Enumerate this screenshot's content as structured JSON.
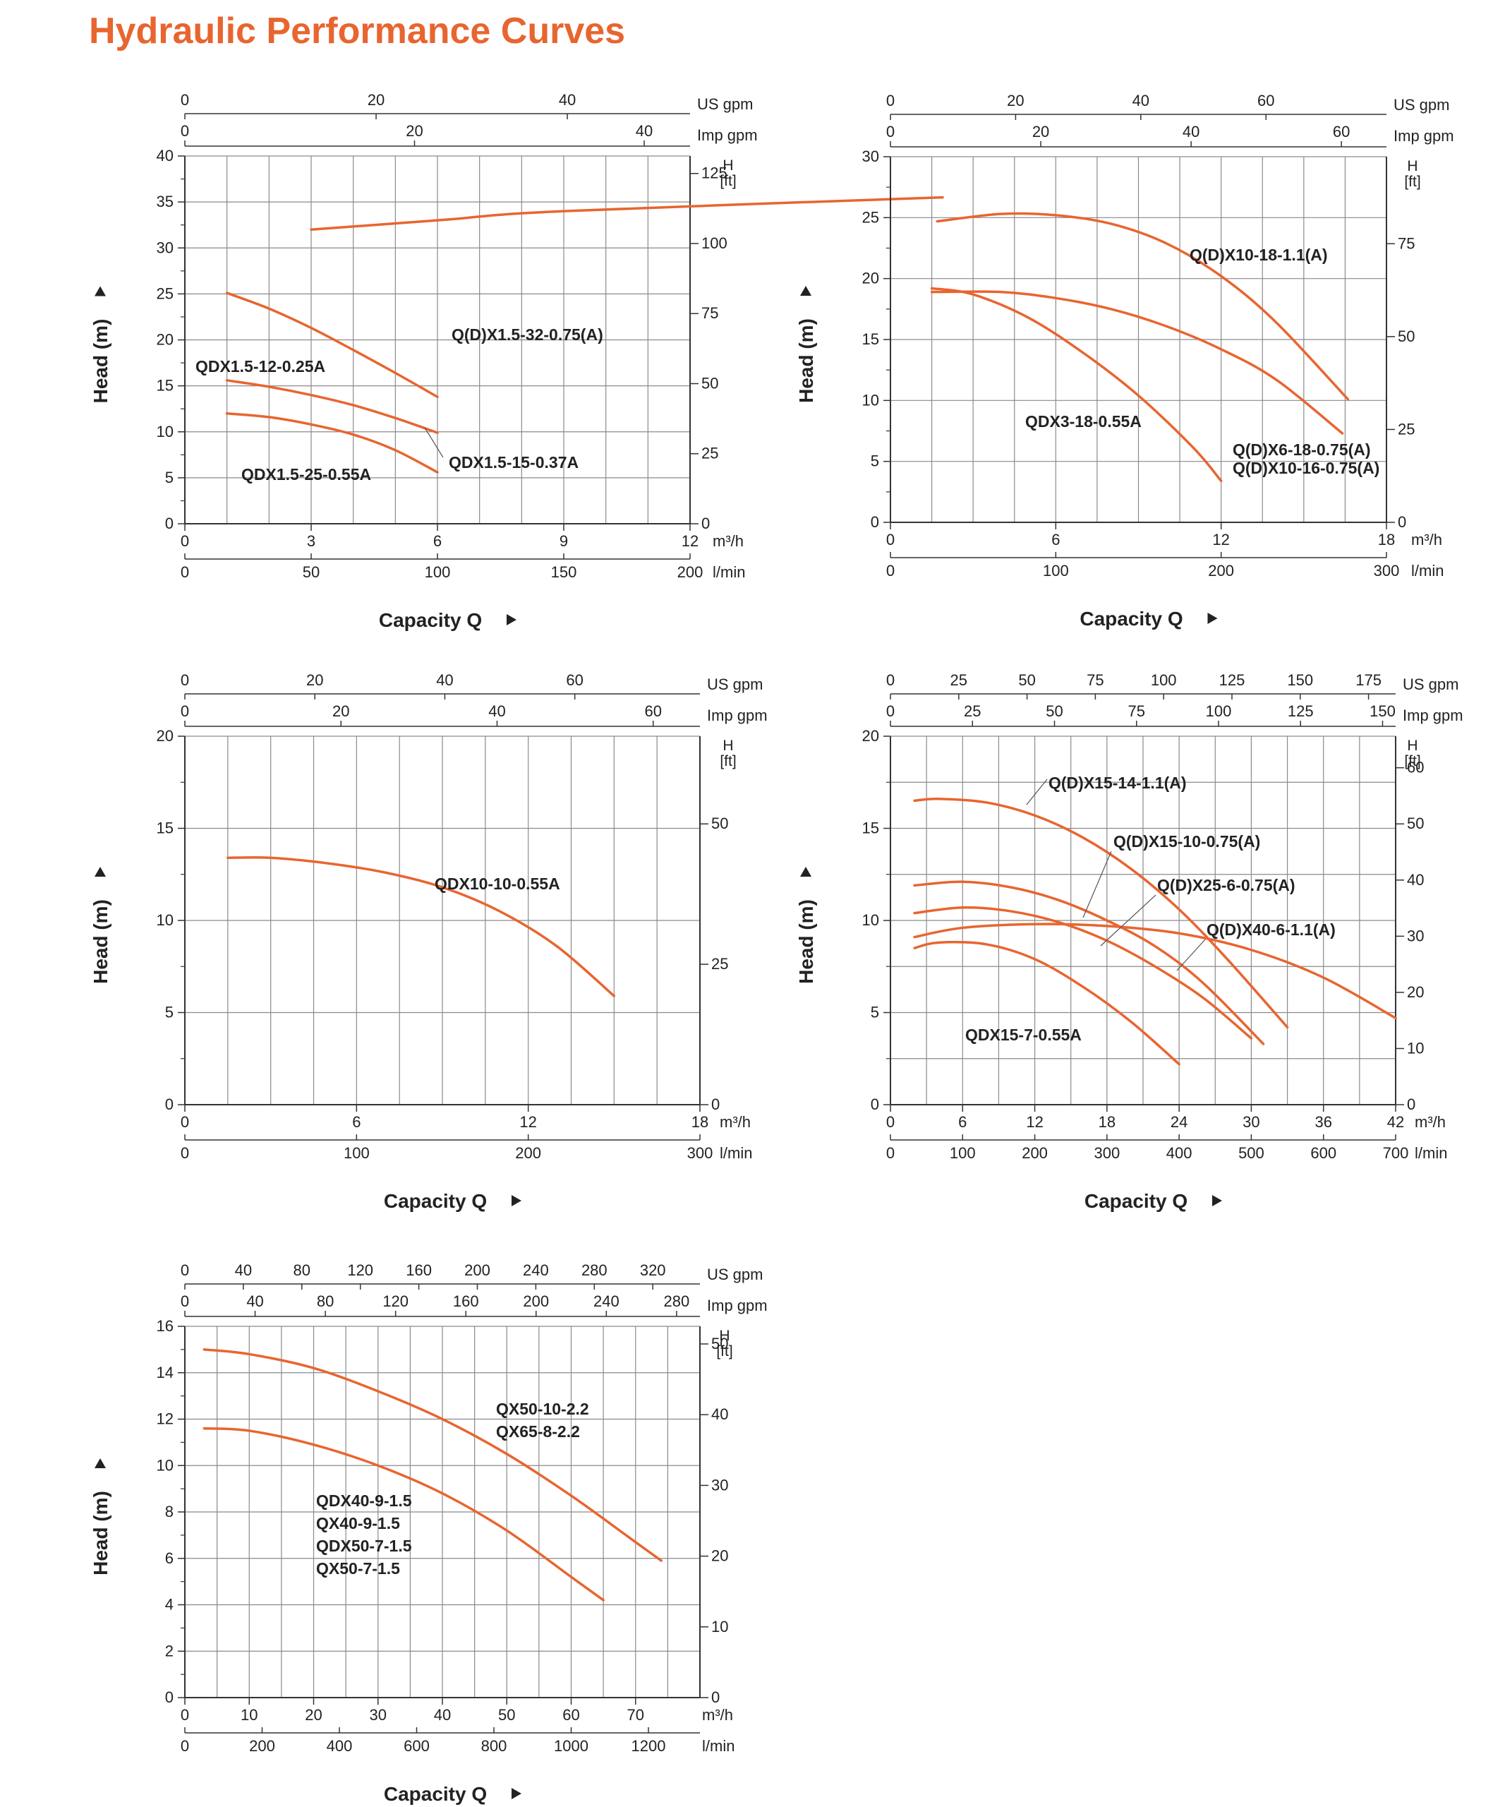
{
  "page": {
    "title": "Hydraulic Performance Curves",
    "title_color": "#E8652F",
    "curve_color": "#E8652F"
  },
  "chart_data": [
    {
      "type": "line",
      "xlim": [
        0,
        12
      ],
      "ylim": [
        0,
        40
      ],
      "x_ticks": [
        "0",
        "3",
        "6",
        "9",
        "12"
      ],
      "x_unit": "m³/h",
      "lmin_ticks": [
        {
          "v": 0,
          "t": "0"
        },
        {
          "v": 50,
          "t": "50"
        },
        {
          "v": 100,
          "t": "100"
        },
        {
          "v": 150,
          "t": "150"
        },
        {
          "v": 200,
          "t": "200"
        }
      ],
      "lmin_unit": "l/min",
      "usgpm_ticks": [
        {
          "v": 0,
          "t": "0"
        },
        {
          "v": 20,
          "t": "20"
        },
        {
          "v": 40,
          "t": "40"
        }
      ],
      "usgpm_unit": "US gpm",
      "impgpm_ticks": [
        {
          "v": 0,
          "t": "0"
        },
        {
          "v": 20,
          "t": "20"
        },
        {
          "v": 40,
          "t": "40"
        }
      ],
      "impgpm_unit": "Imp gpm",
      "y_ticks": [
        "0",
        "5",
        "10",
        "15",
        "20",
        "25",
        "30",
        "35",
        "40"
      ],
      "ft_ticks": [
        {
          "v": 0,
          "t": "0"
        },
        {
          "v": 25,
          "t": "25"
        },
        {
          "v": 50,
          "t": "50"
        },
        {
          "v": 75,
          "t": "75"
        },
        {
          "v": 100,
          "t": "100"
        },
        {
          "v": 125,
          "t": "125"
        }
      ],
      "ft_unit": "H [ft]",
      "xlabel": "Capacity Q",
      "ylabel": "Head (m)",
      "series": [
        {
          "name": "Q(D)X1.5-32-0.75(A)",
          "x": [
            3,
            6,
            9,
            18
          ],
          "y": [
            32,
            33,
            34,
            35.5
          ]
        },
        {
          "name": "QDX1.5-12-0.25A",
          "x": [
            1,
            2,
            3,
            4,
            5,
            6
          ],
          "y": [
            25.1,
            23.4,
            21.3,
            18.9,
            16.4,
            13.8
          ]
        },
        {
          "name": "QDX1.5-15-0.37A",
          "x": [
            1,
            2,
            3,
            4,
            5,
            6
          ],
          "y": [
            15.6,
            14.9,
            14.0,
            12.9,
            11.5,
            9.9
          ]
        },
        {
          "name": "QDX1.5-25-0.55A",
          "x": [
            1,
            2,
            3,
            4,
            5,
            6
          ],
          "y": [
            12.0,
            11.6,
            10.8,
            9.7,
            8.0,
            5.6
          ]
        }
      ]
    },
    {
      "type": "line",
      "xlim": [
        0,
        18
      ],
      "ylim": [
        0,
        30
      ],
      "x_ticks": [
        "0",
        "6",
        "12",
        "18"
      ],
      "x_unit": "m³/h",
      "lmin_ticks": [
        {
          "v": 0,
          "t": "0"
        },
        {
          "v": 100,
          "t": "100"
        },
        {
          "v": 200,
          "t": "200"
        },
        {
          "v": 300,
          "t": "300"
        }
      ],
      "lmin_unit": "l/min",
      "usgpm_ticks": [
        {
          "v": 0,
          "t": "0"
        },
        {
          "v": 20,
          "t": "20"
        },
        {
          "v": 40,
          "t": "40"
        },
        {
          "v": 60,
          "t": "60"
        }
      ],
      "usgpm_unit": "US gpm",
      "impgpm_ticks": [
        {
          "v": 0,
          "t": "0"
        },
        {
          "v": 20,
          "t": "20"
        },
        {
          "v": 40,
          "t": "40"
        },
        {
          "v": 60,
          "t": "60"
        }
      ],
      "impgpm_unit": "Imp gpm",
      "y_ticks": [
        "0",
        "5",
        "10",
        "15",
        "20",
        "25",
        "30"
      ],
      "ft_ticks": [
        {
          "v": 0,
          "t": "0"
        },
        {
          "v": 25,
          "t": "25"
        },
        {
          "v": 50,
          "t": "50"
        },
        {
          "v": 75,
          "t": "75"
        }
      ],
      "ft_unit": "H [ft]",
      "xlabel": "Capacity Q",
      "ylabel": "Head (m)",
      "series": [
        {
          "name": "Q(D)X10-18-1.1(A)",
          "x": [
            1.7,
            4,
            6,
            8,
            10,
            12,
            14,
            16.6
          ],
          "y": [
            24.7,
            25.3,
            25.2,
            24.5,
            22.9,
            20.2,
            16.4,
            10.1
          ]
        },
        {
          "name": "Q(D)X6-18-0.75(A) / Q(D)X10-16-0.75(A)",
          "x": [
            1.5,
            4,
            6,
            8,
            10,
            12,
            14,
            16.4
          ],
          "y": [
            18.9,
            18.9,
            18.4,
            17.5,
            16.1,
            14.2,
            11.7,
            7.3
          ]
        },
        {
          "name": "QDX3-18-0.55A",
          "x": [
            1.5,
            3,
            5,
            7,
            9,
            11,
            12
          ],
          "y": [
            19.2,
            18.7,
            16.8,
            13.9,
            10.4,
            6.1,
            3.4
          ]
        }
      ]
    },
    {
      "type": "line",
      "xlim": [
        0,
        18
      ],
      "ylim": [
        0,
        20
      ],
      "x_ticks": [
        "0",
        "6",
        "12",
        "18"
      ],
      "x_unit": "m³/h",
      "lmin_ticks": [
        {
          "v": 0,
          "t": "0"
        },
        {
          "v": 100,
          "t": "100"
        },
        {
          "v": 200,
          "t": "200"
        },
        {
          "v": 300,
          "t": "300"
        }
      ],
      "lmin_unit": "l/min",
      "usgpm_ticks": [
        {
          "v": 0,
          "t": "0"
        },
        {
          "v": 20,
          "t": "20"
        },
        {
          "v": 40,
          "t": "40"
        },
        {
          "v": 60,
          "t": "60"
        }
      ],
      "usgpm_unit": "US gpm",
      "impgpm_ticks": [
        {
          "v": 0,
          "t": "0"
        },
        {
          "v": 20,
          "t": "20"
        },
        {
          "v": 40,
          "t": "40"
        },
        {
          "v": 60,
          "t": "60"
        }
      ],
      "impgpm_unit": "Imp gpm",
      "y_ticks": [
        "0",
        "5",
        "10",
        "15",
        "20"
      ],
      "ft_ticks": [
        {
          "v": 0,
          "t": "0"
        },
        {
          "v": 25,
          "t": "25"
        },
        {
          "v": 50,
          "t": "50"
        }
      ],
      "ft_unit": "H [ft]",
      "xlabel": "Capacity Q",
      "ylabel": "Head (m)",
      "series": [
        {
          "name": "QDX10-10-0.55A",
          "x": [
            1.5,
            3,
            5,
            7,
            9,
            11,
            13,
            15
          ],
          "y": [
            13.4,
            13.4,
            13.1,
            12.6,
            11.8,
            10.5,
            8.6,
            5.9
          ]
        }
      ]
    },
    {
      "type": "line",
      "xlim": [
        0,
        42
      ],
      "ylim": [
        0,
        20
      ],
      "x_ticks": [
        "0",
        "6",
        "12",
        "18",
        "24",
        "30",
        "36",
        "42"
      ],
      "x_unit": "m³/h",
      "lmin_ticks": [
        {
          "v": 0,
          "t": "0"
        },
        {
          "v": 100,
          "t": "100"
        },
        {
          "v": 200,
          "t": "200"
        },
        {
          "v": 300,
          "t": "300"
        },
        {
          "v": 400,
          "t": "400"
        },
        {
          "v": 500,
          "t": "500"
        },
        {
          "v": 600,
          "t": "600"
        },
        {
          "v": 700,
          "t": "700"
        }
      ],
      "lmin_unit": "l/min",
      "usgpm_ticks": [
        {
          "v": 0,
          "t": "0"
        },
        {
          "v": 25,
          "t": "25"
        },
        {
          "v": 50,
          "t": "50"
        },
        {
          "v": 75,
          "t": "75"
        },
        {
          "v": 100,
          "t": "100"
        },
        {
          "v": 125,
          "t": "125"
        },
        {
          "v": 150,
          "t": "150"
        },
        {
          "v": 175,
          "t": "175"
        }
      ],
      "usgpm_unit": "US gpm",
      "impgpm_ticks": [
        {
          "v": 0,
          "t": "0"
        },
        {
          "v": 25,
          "t": "25"
        },
        {
          "v": 50,
          "t": "50"
        },
        {
          "v": 75,
          "t": "75"
        },
        {
          "v": 100,
          "t": "100"
        },
        {
          "v": 125,
          "t": "125"
        },
        {
          "v": 150,
          "t": "150"
        }
      ],
      "impgpm_unit": "Imp gpm",
      "y_ticks": [
        "0",
        "5",
        "10",
        "15",
        "20"
      ],
      "ft_ticks": [
        {
          "v": 0,
          "t": "0"
        },
        {
          "v": 10,
          "t": "10"
        },
        {
          "v": 20,
          "t": "20"
        },
        {
          "v": 30,
          "t": "30"
        },
        {
          "v": 40,
          "t": "40"
        },
        {
          "v": 50,
          "t": "50"
        },
        {
          "v": 60,
          "t": "60"
        }
      ],
      "ft_unit": "H [ft]",
      "xlabel": "Capacity Q",
      "ylabel": "Head (m)",
      "series": [
        {
          "name": "Q(D)X15-14-1.1(A)",
          "x": [
            2,
            4,
            8,
            12,
            16,
            20,
            24,
            28,
            33
          ],
          "y": [
            16.5,
            16.6,
            16.4,
            15.7,
            14.5,
            12.8,
            10.6,
            7.9,
            4.2
          ]
        },
        {
          "name": "Q(D)X15-10-0.75(A)",
          "x": [
            2,
            6,
            10,
            14,
            18,
            22,
            26,
            31
          ],
          "y": [
            11.9,
            12.1,
            11.8,
            11.1,
            10.0,
            8.6,
            6.6,
            3.3
          ]
        },
        {
          "name": "Q(D)X25-6-0.75(A)",
          "x": [
            2,
            6,
            10,
            14,
            18,
            22,
            26,
            30
          ],
          "y": [
            10.4,
            10.7,
            10.5,
            9.9,
            8.9,
            7.5,
            5.8,
            3.6
          ]
        },
        {
          "name": "Q(D)X40-6-1.1(A)",
          "x": [
            2,
            6,
            12,
            18,
            24,
            30,
            36,
            42
          ],
          "y": [
            9.1,
            9.6,
            9.8,
            9.7,
            9.3,
            8.4,
            6.9,
            4.7
          ]
        },
        {
          "name": "QDX15-7-0.55A",
          "x": [
            2,
            4,
            8,
            12,
            16,
            20,
            24
          ],
          "y": [
            8.5,
            8.8,
            8.7,
            7.9,
            6.4,
            4.5,
            2.2
          ]
        }
      ]
    },
    {
      "type": "line",
      "xlim": [
        0,
        80
      ],
      "ylim": [
        0,
        16
      ],
      "x_ticks": [
        "0",
        "10",
        "20",
        "30",
        "40",
        "50",
        "60",
        "70"
      ],
      "x_unit": "m³/h",
      "lmin_ticks": [
        {
          "v": 0,
          "t": "0"
        },
        {
          "v": 200,
          "t": "200"
        },
        {
          "v": 400,
          "t": "400"
        },
        {
          "v": 600,
          "t": "600"
        },
        {
          "v": 800,
          "t": "800"
        },
        {
          "v": 1000,
          "t": "1000"
        },
        {
          "v": 1200,
          "t": "1200"
        }
      ],
      "lmin_unit": "l/min",
      "usgpm_ticks": [
        {
          "v": 0,
          "t": "0"
        },
        {
          "v": 40,
          "t": "40"
        },
        {
          "v": 80,
          "t": "80"
        },
        {
          "v": 120,
          "t": "120"
        },
        {
          "v": 160,
          "t": "160"
        },
        {
          "v": 200,
          "t": "200"
        },
        {
          "v": 240,
          "t": "240"
        },
        {
          "v": 280,
          "t": "280"
        },
        {
          "v": 320,
          "t": "320"
        }
      ],
      "usgpm_unit": "US gpm",
      "impgpm_ticks": [
        {
          "v": 0,
          "t": "0"
        },
        {
          "v": 40,
          "t": "40"
        },
        {
          "v": 80,
          "t": "80"
        },
        {
          "v": 120,
          "t": "120"
        },
        {
          "v": 160,
          "t": "160"
        },
        {
          "v": 200,
          "t": "200"
        },
        {
          "v": 240,
          "t": "240"
        },
        {
          "v": 280,
          "t": "280"
        }
      ],
      "impgpm_unit": "Imp gpm",
      "y_ticks": [
        "0",
        "2",
        "4",
        "6",
        "8",
        "10",
        "12",
        "14",
        "16"
      ],
      "ft_ticks": [
        {
          "v": 0,
          "t": "0"
        },
        {
          "v": 10,
          "t": "10"
        },
        {
          "v": 20,
          "t": "20"
        },
        {
          "v": 30,
          "t": "30"
        },
        {
          "v": 40,
          "t": "40"
        },
        {
          "v": 50,
          "t": "50"
        }
      ],
      "ft_unit": "H [ft]",
      "xlabel": "Capacity Q",
      "ylabel": "Head (m)",
      "series": [
        {
          "name": "QX50-10-2.2 / QX65-8-2.2",
          "x": [
            3,
            10,
            20,
            30,
            40,
            50,
            60,
            70,
            74
          ],
          "y": [
            15.0,
            14.8,
            14.2,
            13.2,
            12.0,
            10.5,
            8.7,
            6.7,
            5.9
          ]
        },
        {
          "name": "QDX40-9-1.5 / QX40-9-1.5 / QDX50-7-1.5 / QX50-7-1.5",
          "x": [
            3,
            10,
            20,
            30,
            40,
            50,
            60,
            65
          ],
          "y": [
            11.6,
            11.5,
            10.9,
            10.0,
            8.8,
            7.2,
            5.2,
            4.2
          ]
        }
      ]
    }
  ],
  "labels": [
    [
      "Q(D)X1.5-32-0.75(A)",
      "QDX1.5-12-0.25A",
      "QDX1.5-15-0.37A",
      "QDX1.5-25-0.55A"
    ],
    [
      "Q(D)X10-18-1.1(A)",
      "QDX3-18-0.55A",
      "Q(D)X6-18-0.75(A)",
      "Q(D)X10-16-0.75(A)"
    ],
    [
      "QDX10-10-0.55A"
    ],
    [
      "Q(D)X15-14-1.1(A)",
      "Q(D)X15-10-0.75(A)",
      "Q(D)X25-6-0.75(A)",
      "Q(D)X40-6-1.1(A)",
      "QDX15-7-0.55A"
    ],
    [
      "QX50-10-2.2",
      "QX65-8-2.2",
      "QDX40-9-1.5",
      "QX40-9-1.5",
      "QDX50-7-1.5",
      "QX50-7-1.5"
    ]
  ]
}
